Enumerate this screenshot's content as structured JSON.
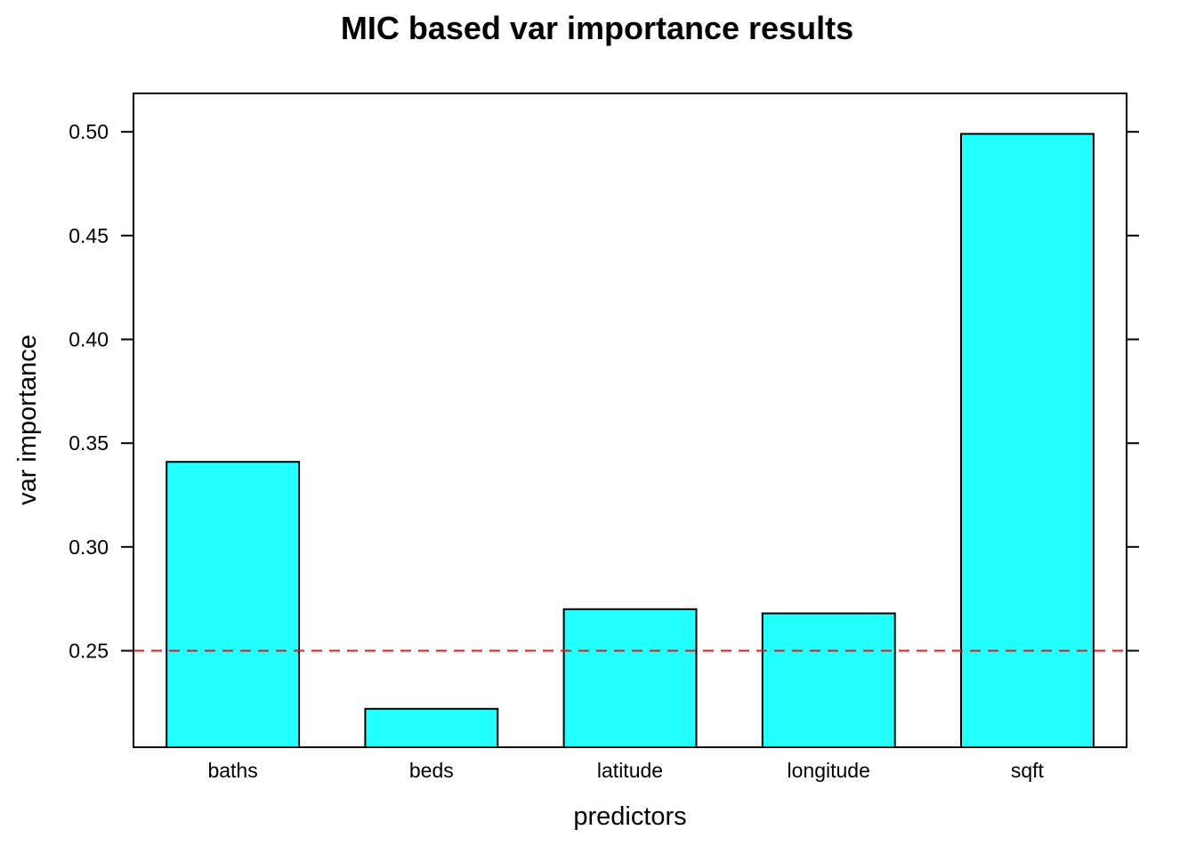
{
  "chart_data": {
    "type": "bar",
    "title": "MIC based var importance results",
    "xlabel": "predictors",
    "ylabel": "var importance",
    "categories": [
      "baths",
      "beds",
      "latitude",
      "longitude",
      "sqft"
    ],
    "values": [
      0.341,
      0.222,
      0.27,
      0.268,
      0.499
    ],
    "ylim": [
      0.2035,
      0.5185
    ],
    "yticks": [
      0.25,
      0.3,
      0.35,
      0.4,
      0.45,
      0.5
    ],
    "ytick_labels": [
      "0.25",
      "0.30",
      "0.35",
      "0.40",
      "0.45",
      "0.50"
    ],
    "reference_line": {
      "value": 0.25,
      "style": "dashed",
      "color": "#e41a1c"
    },
    "grid": false,
    "legend": "none",
    "bar_color": "#21ffff",
    "bar_edge_color": "#000000"
  }
}
